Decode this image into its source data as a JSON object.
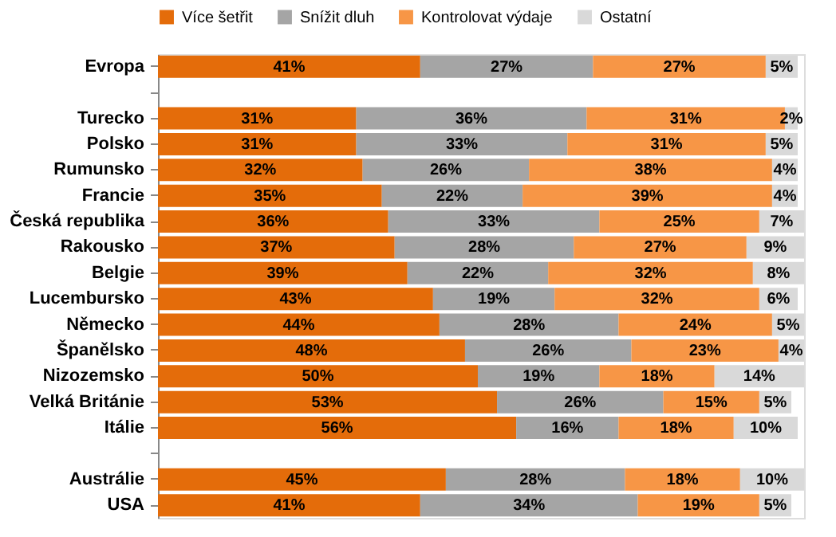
{
  "chart_data": {
    "type": "bar",
    "orientation": "horizontal",
    "stacked": true,
    "legend": "top",
    "categories": [
      "Evropa",
      null,
      "Turecko",
      "Polsko",
      "Rumunsko",
      "Francie",
      "Česká republika",
      "Rakousko",
      "Belgie",
      "Lucembursko",
      "Německo",
      "Španělsko",
      "Nizozemsko",
      "Velká Británie",
      "Itálie",
      null,
      "Austrálie",
      "USA"
    ],
    "series": [
      {
        "name": "Více šetřit",
        "color": "#e46c0a",
        "values": [
          41,
          null,
          31,
          31,
          32,
          35,
          36,
          37,
          39,
          43,
          44,
          48,
          50,
          53,
          56,
          null,
          45,
          41
        ],
        "value_labels": [
          "41%",
          null,
          "31%",
          "31%",
          "32%",
          "35%",
          "36%",
          "37%",
          "39%",
          "43%",
          "44%",
          "48%",
          "50%",
          "53%",
          "56%",
          null,
          "45%",
          "41%"
        ]
      },
      {
        "name": "Snížit dluh",
        "color": "#a5a5a5",
        "values": [
          27,
          null,
          36,
          33,
          26,
          22,
          33,
          28,
          22,
          19,
          28,
          26,
          19,
          26,
          16,
          null,
          28,
          34
        ],
        "value_labels": [
          "27%",
          null,
          "36%",
          "33%",
          "26%",
          "22%",
          "33%",
          "28%",
          "22%",
          "19%",
          "28%",
          "26%",
          "19%",
          "26%",
          "16%",
          null,
          "28%",
          "34%"
        ]
      },
      {
        "name": "Kontrolovat výdaje",
        "color": "#f79646",
        "values": [
          27,
          null,
          31,
          31,
          38,
          39,
          25,
          27,
          32,
          32,
          24,
          23,
          18,
          15,
          18,
          null,
          18,
          19
        ],
        "value_labels": [
          "27%",
          null,
          "31%",
          "31%",
          "38%",
          "39%",
          "25%",
          "27%",
          "32%",
          "32%",
          "24%",
          "23%",
          "18%",
          "15%",
          "18%",
          null,
          "18%",
          "19%"
        ]
      },
      {
        "name": "Ostatní",
        "color": "#d9d9d9",
        "values": [
          5,
          null,
          2,
          5,
          4,
          4,
          7,
          9,
          8,
          6,
          5,
          4,
          14,
          5,
          10,
          null,
          10,
          5
        ],
        "value_labels": [
          "5%",
          null,
          "2%",
          "5%",
          "4%",
          "4%",
          "7%",
          "9%",
          "8%",
          "6%",
          "5%",
          "4%",
          "14%",
          "5%",
          "10%",
          null,
          "10%",
          "5%"
        ]
      }
    ]
  }
}
